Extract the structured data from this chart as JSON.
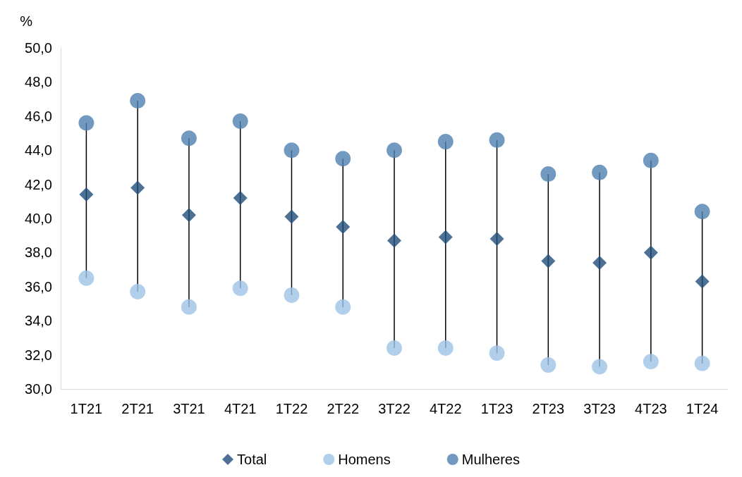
{
  "chart_data": {
    "type": "scatter",
    "ylabel": "%",
    "categories": [
      "1T21",
      "2T21",
      "3T21",
      "4T21",
      "1T22",
      "2T22",
      "3T22",
      "4T22",
      "1T23",
      "2T23",
      "3T23",
      "4T23",
      "1T24"
    ],
    "series": [
      {
        "name": "Total",
        "color": "#1f4e79",
        "marker": "diamond",
        "values": [
          41.4,
          41.8,
          40.2,
          41.2,
          40.1,
          39.5,
          38.7,
          38.9,
          38.8,
          37.5,
          37.4,
          38.0,
          36.3
        ]
      },
      {
        "name": "Homens",
        "color": "#9dc3e6",
        "marker": "circle",
        "values": [
          36.5,
          35.7,
          34.8,
          35.9,
          35.5,
          34.8,
          32.4,
          32.4,
          32.1,
          31.4,
          31.3,
          31.6,
          31.5
        ]
      },
      {
        "name": "Mulheres",
        "color": "#4f81b0",
        "marker": "circle",
        "values": [
          45.6,
          46.9,
          44.7,
          45.7,
          44.0,
          43.5,
          44.0,
          44.5,
          44.6,
          42.6,
          42.7,
          43.4,
          40.4
        ]
      }
    ],
    "ylim": [
      30,
      50
    ],
    "yticks": [
      {
        "value": 30,
        "label": "30,0"
      },
      {
        "value": 32,
        "label": "32,0"
      },
      {
        "value": 34,
        "label": "34,0"
      },
      {
        "value": 36,
        "label": "36,0"
      },
      {
        "value": 38,
        "label": "38,0"
      },
      {
        "value": 40,
        "label": "40,0"
      },
      {
        "value": 42,
        "label": "42,0"
      },
      {
        "value": 44,
        "label": "44,0"
      },
      {
        "value": 46,
        "label": "46,0"
      },
      {
        "value": 48,
        "label": "48,0"
      },
      {
        "value": 50,
        "label": "50,0"
      }
    ],
    "grid": false,
    "legend": "bottom"
  }
}
